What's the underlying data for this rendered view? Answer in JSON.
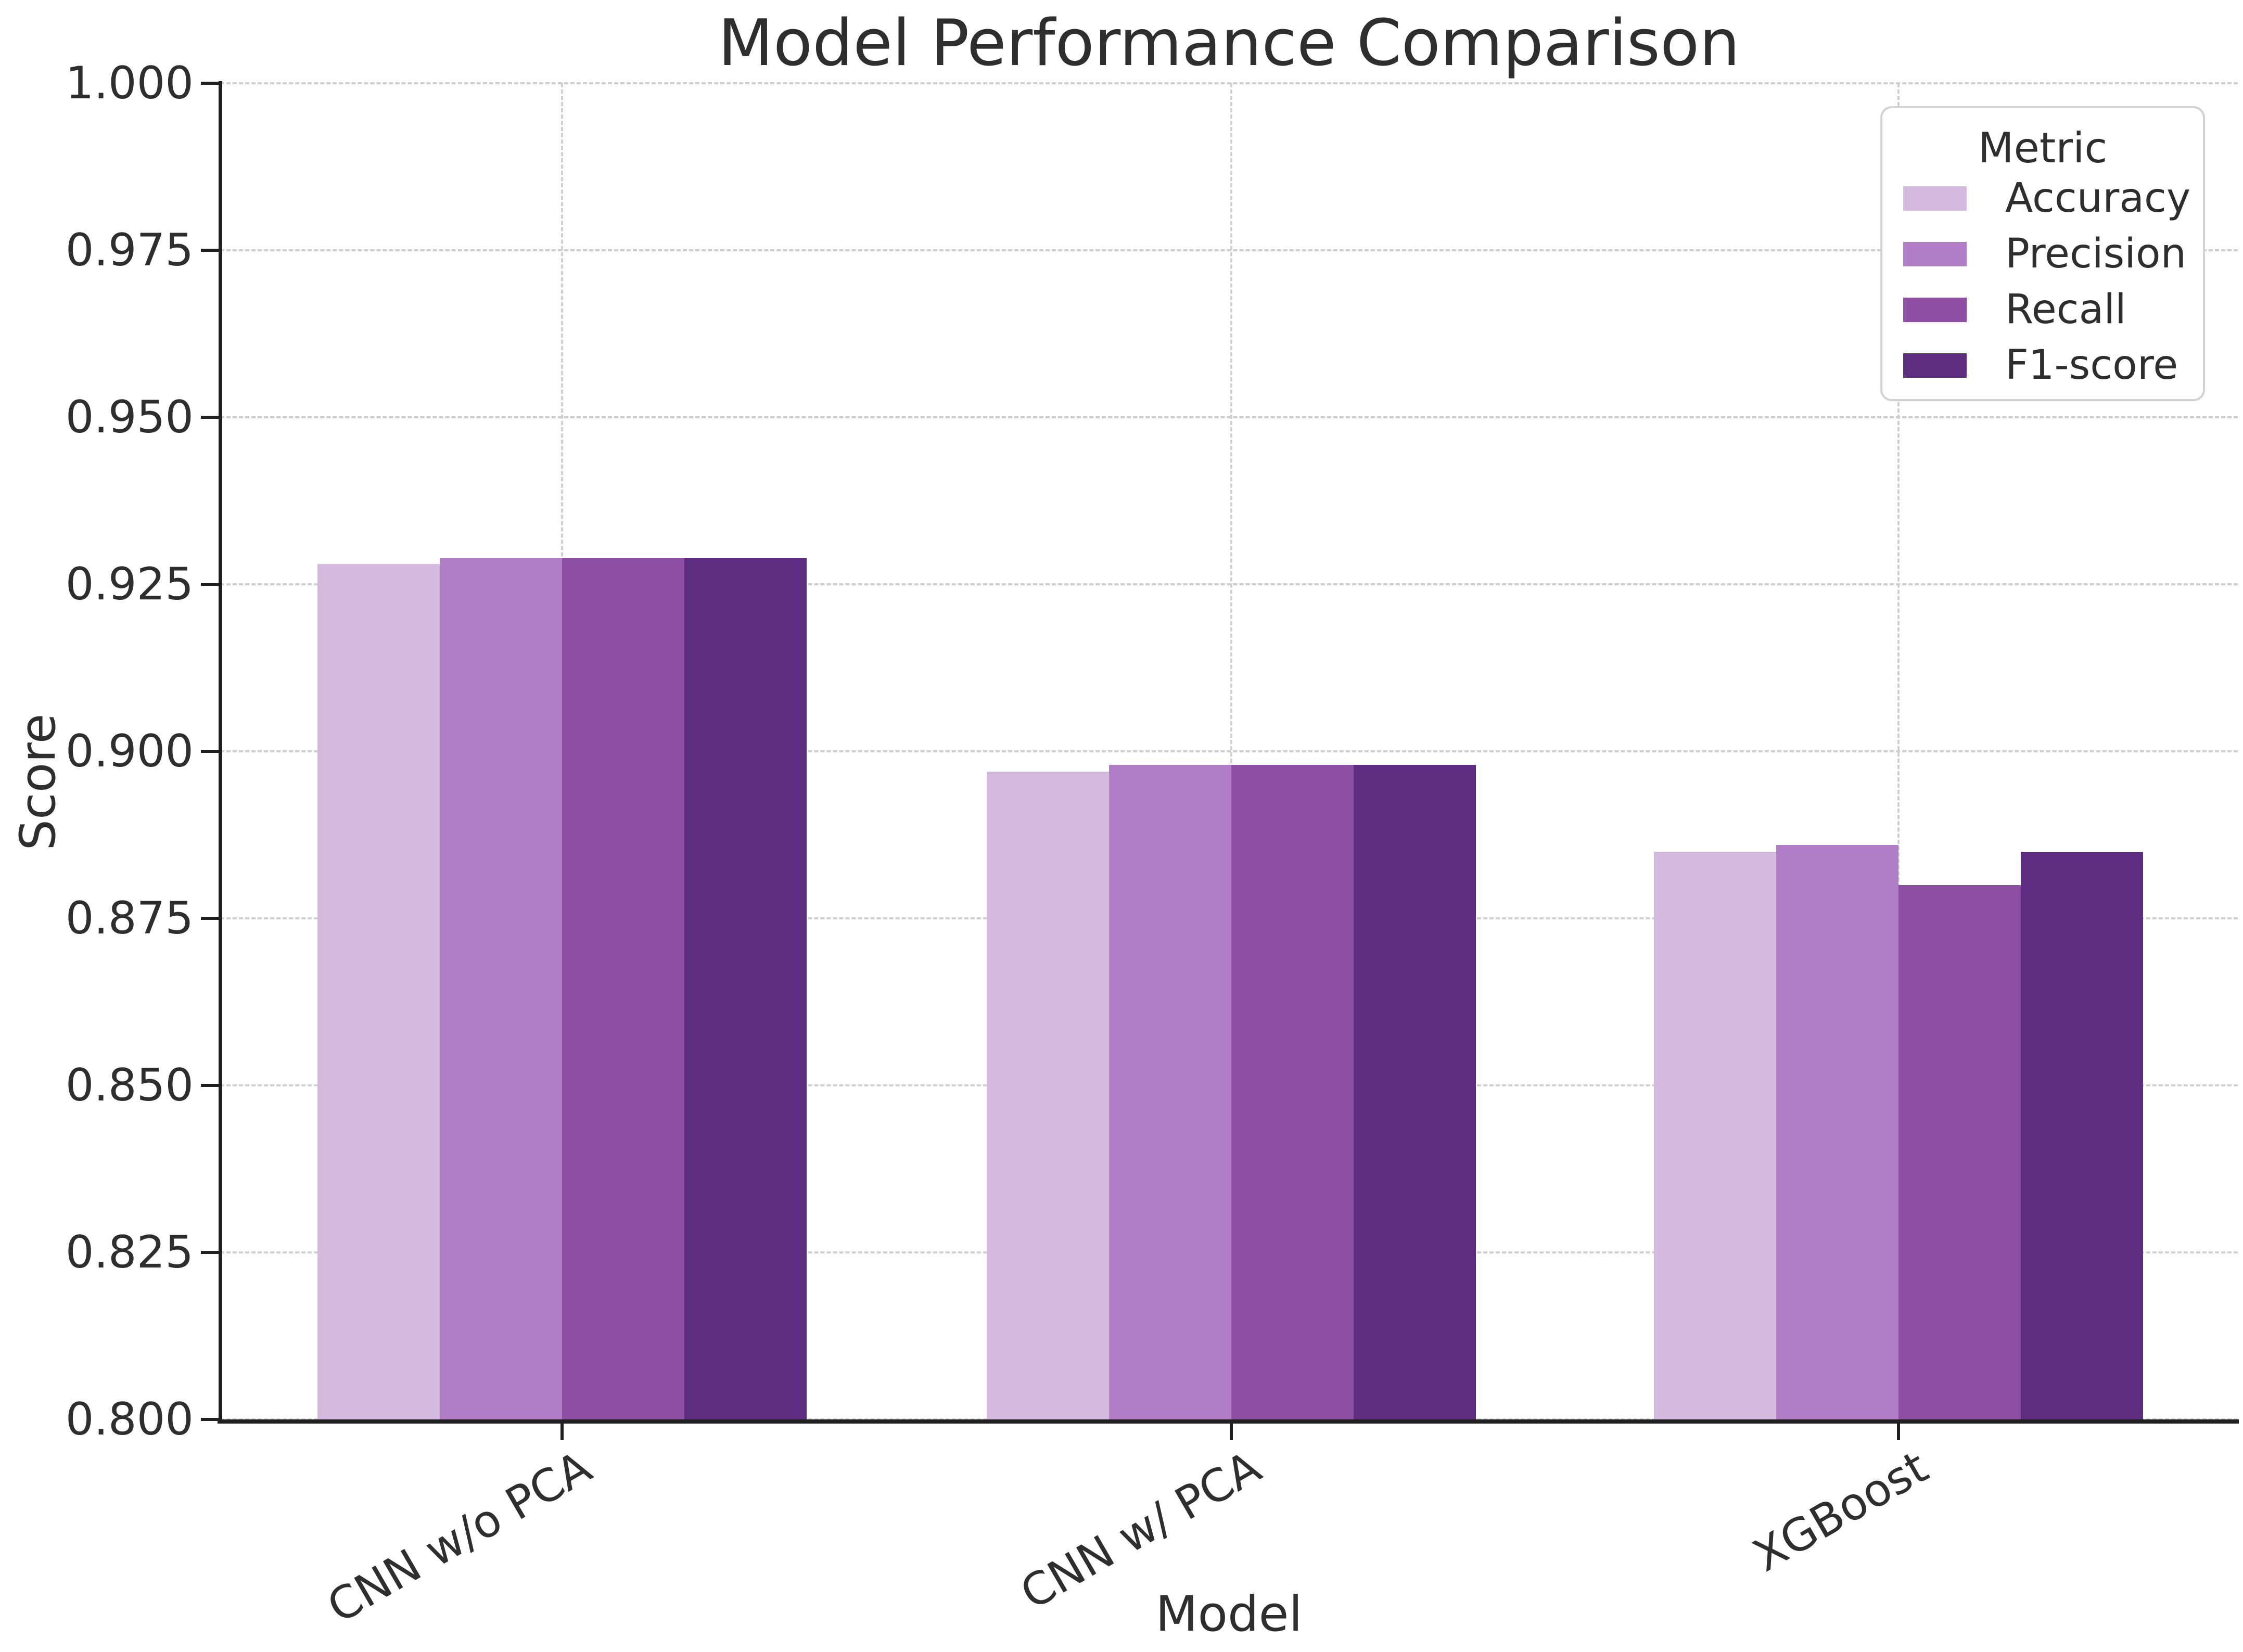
{
  "title": "Model Performance Comparison",
  "chart_data": {
    "type": "bar",
    "title": "Model Performance Comparison",
    "xlabel": "Model",
    "ylabel": "Score",
    "ylim": [
      0.8,
      1.0
    ],
    "ytick_labels": [
      "1.000",
      "0.975",
      "0.950",
      "0.925",
      "0.900",
      "0.875",
      "0.850",
      "0.825",
      "0.800"
    ],
    "yticks": [
      1.0,
      0.975,
      0.95,
      0.925,
      0.9,
      0.875,
      0.85,
      0.825,
      0.8
    ],
    "categories": [
      "CNN w/o PCA",
      "CNN w/ PCA",
      "XGBoost"
    ],
    "xtick_rotation_deg": 30,
    "grid": true,
    "grid_style": "dashed",
    "legend_title": "Metric",
    "legend_position": "upper right",
    "series": [
      {
        "name": "Accuracy",
        "color": "#d3bade",
        "values": [
          0.928,
          0.897,
          0.885
        ]
      },
      {
        "name": "Precision",
        "color": "#b07dc6",
        "values": [
          0.929,
          0.898,
          0.886
        ]
      },
      {
        "name": "Recall",
        "color": "#8c4fa4",
        "values": [
          0.929,
          0.898,
          0.88
        ]
      },
      {
        "name": "F1-score",
        "color": "#5c2d80",
        "values": [
          0.929,
          0.898,
          0.885
        ]
      }
    ]
  },
  "colors": {
    "background": "#ffffff",
    "grid": "#cfcfcf",
    "spine": "#202020",
    "text": "#2e2e2e",
    "legend_border": "#d2d2d2"
  }
}
